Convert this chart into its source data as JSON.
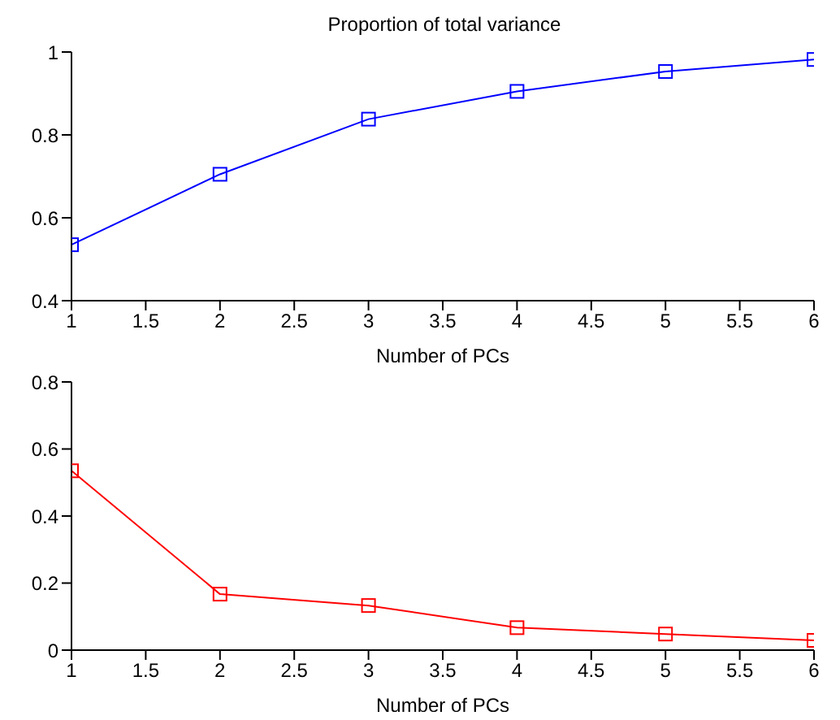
{
  "chart_data": [
    {
      "type": "line",
      "title": "Proportion of total variance",
      "xlabel": "Number of PCs",
      "x": [
        1,
        2,
        3,
        4,
        5,
        6
      ],
      "series": [
        {
          "color": "#0000ff",
          "values": [
            0.535,
            0.705,
            0.838,
            0.905,
            0.953,
            0.982
          ]
        }
      ],
      "xlim": [
        1,
        6
      ],
      "xticks": [
        1,
        1.5,
        2,
        2.5,
        3,
        3.5,
        4,
        4.5,
        5,
        5.5,
        6
      ],
      "ylim": [
        0.4,
        1
      ],
      "yticks": [
        0.4,
        0.6,
        0.8,
        1
      ],
      "marker": "square",
      "grid": false,
      "legend": false
    },
    {
      "type": "line",
      "xlabel": "Number of PCs",
      "x": [
        1,
        2,
        3,
        4,
        5,
        6
      ],
      "series": [
        {
          "color": "#ff0000",
          "values": [
            0.535,
            0.167,
            0.133,
            0.067,
            0.048,
            0.029
          ]
        }
      ],
      "xlim": [
        1,
        6
      ],
      "xticks": [
        1,
        1.5,
        2,
        2.5,
        3,
        3.5,
        4,
        4.5,
        5,
        5.5,
        6
      ],
      "ylim": [
        0,
        0.8
      ],
      "yticks": [
        0,
        0.2,
        0.4,
        0.6,
        0.8
      ],
      "marker": "square",
      "grid": false,
      "legend": false
    }
  ]
}
